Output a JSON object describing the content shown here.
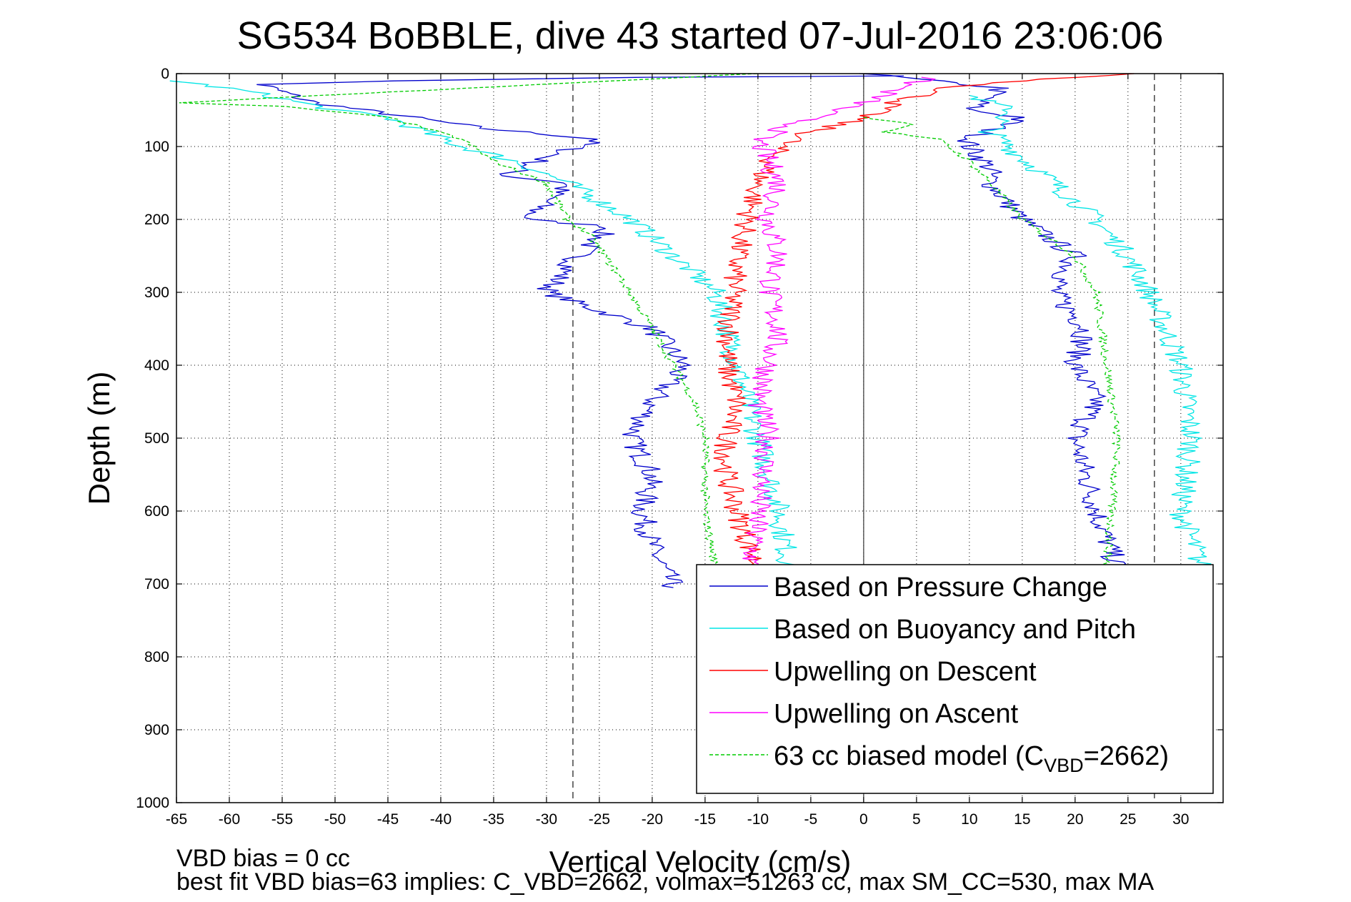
{
  "chart_data": {
    "type": "line",
    "title": "SG534 BoBBLE, dive 43 started 07-Jul-2016 23:06:06",
    "xlabel": "Vertical Velocity (cm/s)",
    "ylabel": "Depth (m)",
    "xlim": [
      -65,
      34
    ],
    "ylim": [
      0,
      1000
    ],
    "y_reversed": true,
    "grid": true,
    "legend_placement": "bottom-right",
    "xticks": [
      "-65",
      "-60",
      "-55",
      "-50",
      "-45",
      "-40",
      "-35",
      "-30",
      "-25",
      "-20",
      "-15",
      "-10",
      "-5",
      "0",
      "5",
      "10",
      "15",
      "20",
      "25",
      "30"
    ],
    "yticks": [
      "0",
      "100",
      "200",
      "300",
      "400",
      "500",
      "600",
      "700",
      "800",
      "900",
      "1000"
    ],
    "reference_lines": {
      "vertical_dashed": [
        -27.5,
        27.5
      ],
      "vertical_solid": [
        0
      ]
    },
    "series": [
      {
        "name": "Based on Pressure Change",
        "color": "#0000cc",
        "style": "solid",
        "segments": [
          {
            "x": [
              5,
              -20,
              -45,
              -57,
              -52,
              -45,
              -36,
              -25,
              -30,
              -34,
              -28,
              -32,
              -24,
              -27,
              -30,
              -20,
              -17,
              -20,
              -22,
              -20,
              -21,
              -20,
              -18
            ],
            "y": [
              3,
              5,
              10,
              15,
              40,
              55,
              75,
              90,
              115,
              140,
              150,
              200,
              210,
              250,
              300,
              350,
              400,
              450,
              500,
              550,
              600,
              650,
              705
            ]
          },
          {
            "x": [
              0,
              13,
              10,
              15,
              10,
              10,
              12,
              12,
              15,
              20,
              18,
              21,
              20,
              22,
              20,
              21,
              22,
              24
            ],
            "y": [
              0,
              20,
              50,
              60,
              90,
              100,
              130,
              150,
              200,
              250,
              300,
              350,
              400,
              450,
              500,
              550,
              600,
              680
            ]
          }
        ]
      },
      {
        "name": "Based on Buoyancy and Pitch",
        "color": "#00e5e5",
        "style": "solid",
        "segments": [
          {
            "x": [
              -65,
              -58,
              -50,
              -45,
              -38,
              -33,
              -28,
              -22,
              -18,
              -14,
              -12,
              -10,
              -8,
              -7
            ],
            "y": [
              10,
              25,
              50,
              60,
              100,
              120,
              150,
              200,
              250,
              300,
              400,
              500,
              600,
              680
            ]
          },
          {
            "x": [
              10,
              14,
              12,
              18,
              22,
              25,
              27,
              30,
              31,
              30,
              32
            ],
            "y": [
              30,
              50,
              80,
              150,
              200,
              250,
              300,
              400,
              500,
              600,
              680
            ]
          }
        ]
      },
      {
        "name": "Upwelling on Descent",
        "color": "#ff0000",
        "style": "solid",
        "segments": [
          {
            "x": [
              26,
              15,
              8,
              3,
              0,
              -5,
              -8,
              -10,
              -12,
              -13,
              -12,
              -13,
              -13,
              -12,
              -10
            ],
            "y": [
              0,
              10,
              20,
              40,
              60,
              80,
              100,
              150,
              250,
              400,
              450,
              500,
              550,
              600,
              680
            ]
          }
        ]
      },
      {
        "name": "Upwelling on Ascent",
        "color": "#ff00ff",
        "style": "solid",
        "segments": [
          {
            "x": [
              6,
              0,
              -5,
              -10,
              -8,
              -9,
              -8,
              -9,
              -8,
              -9,
              -10,
              -9,
              -10,
              -11
            ],
            "y": [
              5,
              40,
              60,
              90,
              150,
              200,
              250,
              300,
              350,
              400,
              450,
              500,
              600,
              705
            ]
          }
        ]
      },
      {
        "name": "63 cc biased model (C_VBD=2662)",
        "legend_name_base": "63 cc biased model (C",
        "legend_name_sub": "VBD",
        "legend_name_tail": "=2662)",
        "color": "#00cc00",
        "style": "dashed",
        "segments": [
          {
            "x": [
              -10,
              -65,
              -55,
              -45,
              -38,
              -35,
              -30,
              -28,
              -26,
              -23,
              -20,
              -18,
              -16,
              -15,
              -15,
              -14
            ],
            "y": [
              0,
              40,
              45,
              60,
              90,
              120,
              150,
              200,
              220,
              280,
              350,
              400,
              450,
              500,
              600,
              680
            ]
          },
          {
            "x": [
              0,
              5,
              2,
              7,
              10,
              12,
              15,
              20,
              22,
              23,
              24,
              23
            ],
            "y": [
              60,
              70,
              80,
              90,
              120,
              150,
              200,
              250,
              300,
              400,
              500,
              680
            ]
          }
        ]
      }
    ],
    "annotations": [
      "VBD bias = 0 cc",
      "best fit VBD bias=63 implies: C_VBD=2662, volmax=51263 cc, max SM_CC=530, max MA"
    ]
  }
}
